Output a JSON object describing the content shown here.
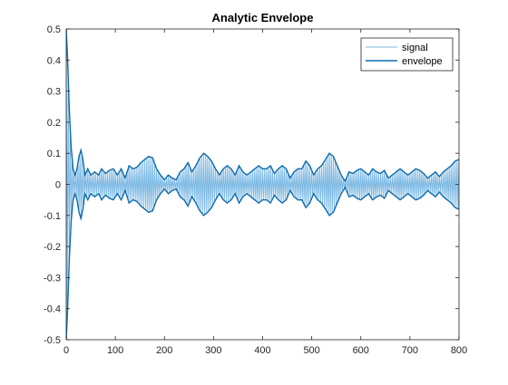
{
  "chart_data": {
    "type": "line",
    "title": "Analytic Envelope",
    "xlabel": "",
    "ylabel": "",
    "xlim": [
      0,
      800
    ],
    "ylim": [
      -0.5,
      0.5
    ],
    "xticks": [
      0,
      100,
      200,
      300,
      400,
      500,
      600,
      700,
      800
    ],
    "yticks": [
      -0.5,
      -0.4,
      -0.3,
      -0.2,
      -0.1,
      0,
      0.1,
      0.2,
      0.3,
      0.4,
      0.5
    ],
    "xtick_labels": [
      "0",
      "100",
      "200",
      "300",
      "400",
      "500",
      "600",
      "700",
      "800"
    ],
    "ytick_labels": [
      "-0.5",
      "-0.4",
      "-0.3",
      "-0.2",
      "-0.1",
      "0",
      "0.1",
      "0.2",
      "0.3",
      "0.4",
      "0.5"
    ],
    "grid": false,
    "legend": {
      "placement": "top-right",
      "entries": [
        "signal",
        "envelope"
      ]
    },
    "colors": {
      "signal": "#7db9e3",
      "envelope": "#0d6bad"
    },
    "series": [
      {
        "name": "signal",
        "kind": "oscillation",
        "carrier_period": 4,
        "note_amplitude_follows": "envelope"
      },
      {
        "name": "envelope",
        "kind": "symmetric-envelope",
        "x": [
          0,
          3,
          6,
          10,
          14,
          18,
          22,
          26,
          30,
          34,
          38,
          44,
          50,
          58,
          66,
          72,
          80,
          88,
          96,
          104,
          112,
          120,
          128,
          136,
          144,
          152,
          160,
          168,
          176,
          184,
          192,
          200,
          208,
          216,
          224,
          232,
          240,
          248,
          256,
          264,
          272,
          280,
          288,
          296,
          304,
          312,
          320,
          328,
          336,
          344,
          352,
          360,
          368,
          376,
          384,
          392,
          400,
          408,
          416,
          424,
          432,
          440,
          448,
          456,
          464,
          472,
          480,
          488,
          496,
          504,
          512,
          520,
          528,
          536,
          544,
          552,
          560,
          568,
          576,
          584,
          592,
          600,
          608,
          616,
          624,
          632,
          640,
          648,
          656,
          664,
          672,
          680,
          688,
          696,
          704,
          712,
          720,
          728,
          736,
          744,
          752,
          760,
          768,
          776,
          784,
          792,
          800
        ],
        "upper": [
          0.5,
          0.4,
          0.25,
          0.12,
          0.05,
          0.03,
          0.05,
          0.09,
          0.11,
          0.08,
          0.03,
          0.05,
          0.03,
          0.04,
          0.03,
          0.05,
          0.035,
          0.045,
          0.05,
          0.03,
          0.05,
          0.02,
          0.06,
          0.05,
          0.055,
          0.07,
          0.08,
          0.09,
          0.085,
          0.05,
          0.03,
          0.015,
          0.03,
          0.02,
          0.015,
          0.04,
          0.05,
          0.07,
          0.04,
          0.06,
          0.085,
          0.1,
          0.09,
          0.075,
          0.05,
          0.03,
          0.05,
          0.06,
          0.05,
          0.03,
          0.06,
          0.04,
          0.03,
          0.04,
          0.05,
          0.06,
          0.05,
          0.05,
          0.06,
          0.035,
          0.05,
          0.06,
          0.05,
          0.02,
          0.04,
          0.05,
          0.05,
          0.075,
          0.06,
          0.03,
          0.05,
          0.06,
          0.08,
          0.1,
          0.09,
          0.06,
          0.03,
          0.01,
          0.04,
          0.035,
          0.045,
          0.05,
          0.04,
          0.03,
          0.05,
          0.04,
          0.035,
          0.045,
          0.02,
          0.03,
          0.04,
          0.05,
          0.04,
          0.03,
          0.04,
          0.05,
          0.045,
          0.035,
          0.02,
          0.03,
          0.04,
          0.025,
          0.04,
          0.05,
          0.06,
          0.075,
          0.08
        ]
      }
    ]
  }
}
